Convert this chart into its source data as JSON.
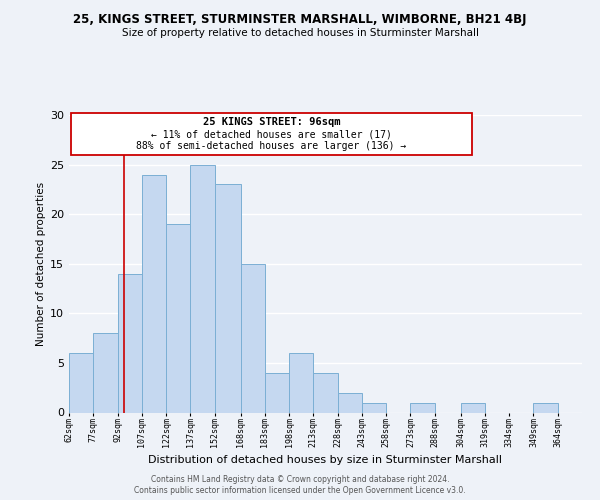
{
  "title1": "25, KINGS STREET, STURMINSTER MARSHALL, WIMBORNE, BH21 4BJ",
  "title2": "Size of property relative to detached houses in Sturminster Marshall",
  "xlabel": "Distribution of detached houses by size in Sturminster Marshall",
  "ylabel": "Number of detached properties",
  "bin_labels": [
    "62sqm",
    "77sqm",
    "92sqm",
    "107sqm",
    "122sqm",
    "137sqm",
    "152sqm",
    "168sqm",
    "183sqm",
    "198sqm",
    "213sqm",
    "228sqm",
    "243sqm",
    "258sqm",
    "273sqm",
    "288sqm",
    "304sqm",
    "319sqm",
    "334sqm",
    "349sqm",
    "364sqm"
  ],
  "bin_edges": [
    62,
    77,
    92,
    107,
    122,
    137,
    152,
    168,
    183,
    198,
    213,
    228,
    243,
    258,
    273,
    288,
    304,
    319,
    334,
    349,
    364,
    379
  ],
  "bar_heights": [
    6,
    8,
    14,
    24,
    19,
    25,
    23,
    15,
    4,
    6,
    4,
    2,
    1,
    0,
    1,
    0,
    1,
    0,
    0,
    1,
    0
  ],
  "bar_color": "#c5d8f0",
  "bar_edge_color": "#7bafd4",
  "vline_x": 96,
  "vline_color": "#cc0000",
  "annotation_title": "25 KINGS STREET: 96sqm",
  "annotation_line1": "← 11% of detached houses are smaller (17)",
  "annotation_line2": "88% of semi-detached houses are larger (136) →",
  "annotation_box_color": "#ffffff",
  "annotation_box_edge": "#cc0000",
  "ylim": [
    0,
    30
  ],
  "yticks": [
    0,
    5,
    10,
    15,
    20,
    25,
    30
  ],
  "footer1": "Contains HM Land Registry data © Crown copyright and database right 2024.",
  "footer2": "Contains public sector information licensed under the Open Government Licence v3.0.",
  "bg_color": "#eef2f8",
  "grid_color": "#ffffff"
}
